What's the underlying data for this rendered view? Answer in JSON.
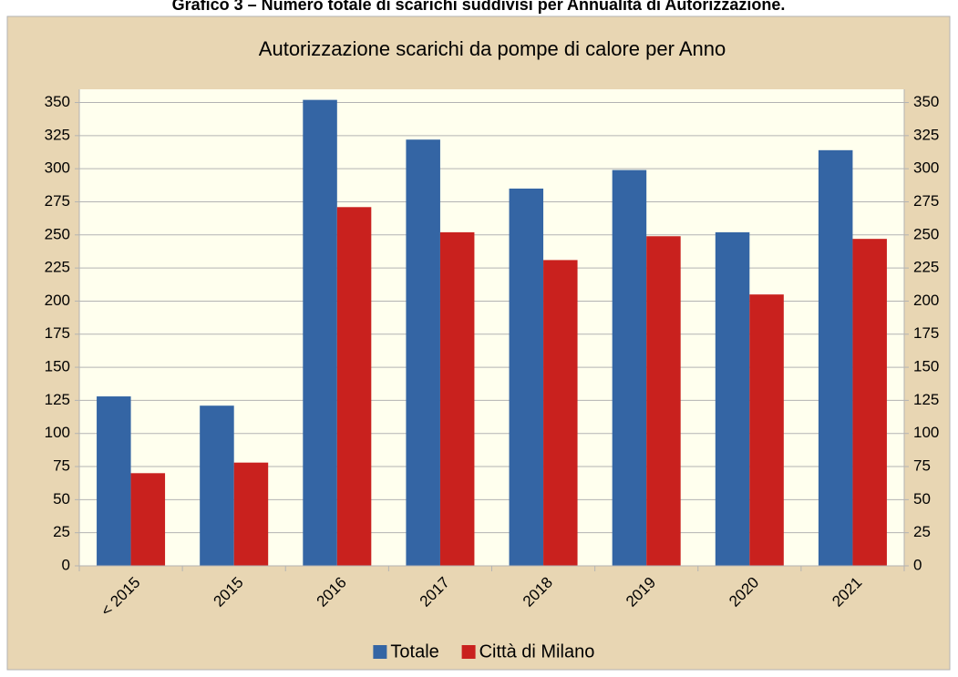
{
  "caption": "Grafico 3 – Numero totale di scarichi suddivisi per Annualità di Autorizzazione.",
  "chart_data": {
    "type": "bar",
    "title": "Autorizzazione scarichi da pompe di calore per Anno",
    "categories": [
      "< 2015",
      "2015",
      "2016",
      "2017",
      "2018",
      "2019",
      "2020",
      "2021"
    ],
    "series": [
      {
        "name": "Totale",
        "color": "#3465a4",
        "values": [
          128,
          121,
          352,
          322,
          285,
          299,
          252,
          314
        ]
      },
      {
        "name": "Città di Milano",
        "color": "#c9211e",
        "values": [
          70,
          78,
          271,
          252,
          231,
          249,
          205,
          247
        ]
      }
    ],
    "ylim": [
      0,
      360
    ],
    "yticks": [
      0,
      25,
      50,
      75,
      100,
      125,
      150,
      175,
      200,
      225,
      250,
      275,
      300,
      325,
      350
    ],
    "grid": true,
    "legend": "bottom"
  }
}
